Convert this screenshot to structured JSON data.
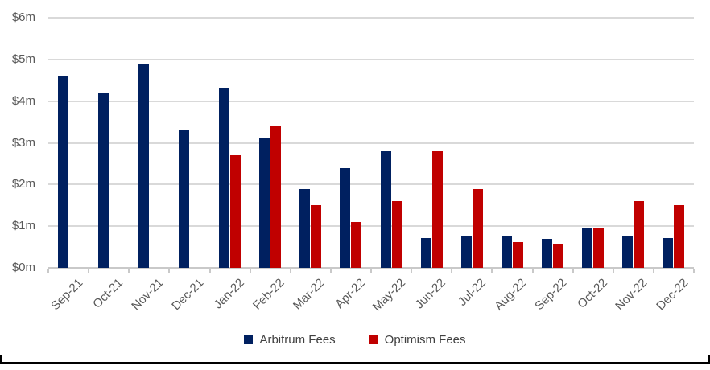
{
  "chart_data": {
    "type": "bar",
    "title": "",
    "xlabel": "",
    "ylabel": "",
    "categories": [
      "Sep-21",
      "Oct-21",
      "Nov-21",
      "Dec-21",
      "Jan-22",
      "Feb-22",
      "Mar-22",
      "Apr-22",
      "May-22",
      "Jun-22",
      "Jul-22",
      "Aug-22",
      "Sep-22",
      "Oct-22",
      "Nov-22",
      "Dec-22"
    ],
    "series": [
      {
        "name": "Arbitrum Fees",
        "color": "#002060",
        "values": [
          4.6,
          4.2,
          4.9,
          3.3,
          4.3,
          3.1,
          1.9,
          2.4,
          2.8,
          0.72,
          0.75,
          0.75,
          0.7,
          0.95,
          0.75,
          0.72
        ]
      },
      {
        "name": "Optimism Fees",
        "color": "#C00000",
        "values": [
          0,
          0,
          0,
          0,
          2.7,
          3.4,
          1.5,
          1.1,
          1.6,
          2.8,
          1.9,
          0.62,
          0.58,
          0.95,
          1.6,
          1.5
        ]
      }
    ],
    "ylim": [
      0,
      6
    ],
    "y_tick_labels": [
      "$0m",
      "$1m",
      "$2m",
      "$3m",
      "$4m",
      "$5m",
      "$6m"
    ],
    "grid": "horizontal",
    "legend_position": "bottom-center"
  },
  "legend": {
    "arbitrum_label": "Arbitrum Fees",
    "optimism_label": "Optimism Fees"
  },
  "colors": {
    "arbitrum": "#002060",
    "optimism": "#C00000",
    "gridline": "#d9d9d9",
    "axis": "#c9c9c9",
    "axis_text": "#595959",
    "legend_text": "#404040",
    "bottom_rule": "#000000"
  }
}
